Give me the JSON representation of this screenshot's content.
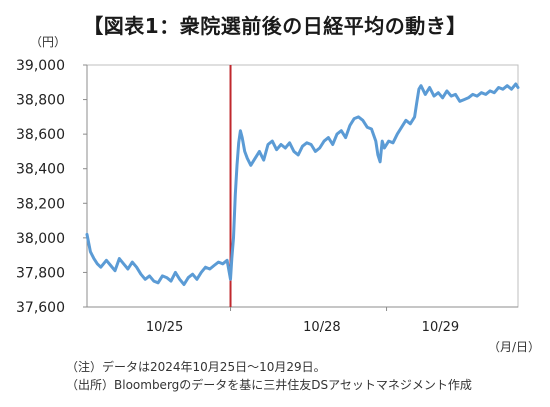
{
  "chart_data": {
    "type": "line",
    "title": "【図表1：衆院選前後の日経平均の動き】",
    "y_unit": "（円）",
    "x_unit": "（月/日）",
    "ylim": [
      37600,
      39000
    ],
    "yticks": [
      39000,
      38800,
      38600,
      38400,
      38200,
      38000,
      37800,
      37600
    ],
    "ytick_labels": [
      "39,000",
      "38,800",
      "38,600",
      "38,400",
      "38,200",
      "38,000",
      "37,800",
      "37,600"
    ],
    "x_tick_labels": [
      {
        "label": "10/25",
        "at": 0.18
      },
      {
        "label": "10/28",
        "at": 0.545
      },
      {
        "label": "10/29",
        "at": 0.82
      }
    ],
    "grid": false,
    "event_line": {
      "at": 0.333,
      "color": "#c0282d"
    },
    "series": [
      {
        "color": "#5b9bd5",
        "points": [
          [
            0.0,
            38020
          ],
          [
            0.008,
            37920
          ],
          [
            0.016,
            37880
          ],
          [
            0.024,
            37850
          ],
          [
            0.032,
            37830
          ],
          [
            0.045,
            37870
          ],
          [
            0.055,
            37840
          ],
          [
            0.065,
            37810
          ],
          [
            0.075,
            37880
          ],
          [
            0.085,
            37850
          ],
          [
            0.095,
            37820
          ],
          [
            0.105,
            37860
          ],
          [
            0.115,
            37830
          ],
          [
            0.125,
            37790
          ],
          [
            0.135,
            37760
          ],
          [
            0.145,
            37780
          ],
          [
            0.155,
            37750
          ],
          [
            0.165,
            37740
          ],
          [
            0.175,
            37780
          ],
          [
            0.185,
            37770
          ],
          [
            0.195,
            37750
          ],
          [
            0.205,
            37800
          ],
          [
            0.215,
            37760
          ],
          [
            0.225,
            37730
          ],
          [
            0.235,
            37770
          ],
          [
            0.245,
            37790
          ],
          [
            0.255,
            37760
          ],
          [
            0.265,
            37800
          ],
          [
            0.275,
            37830
          ],
          [
            0.285,
            37820
          ],
          [
            0.295,
            37840
          ],
          [
            0.305,
            37860
          ],
          [
            0.315,
            37850
          ],
          [
            0.325,
            37870
          ],
          [
            0.333,
            37760
          ],
          [
            0.336,
            37880
          ],
          [
            0.34,
            38000
          ],
          [
            0.344,
            38250
          ],
          [
            0.348,
            38420
          ],
          [
            0.352,
            38550
          ],
          [
            0.356,
            38620
          ],
          [
            0.36,
            38580
          ],
          [
            0.366,
            38500
          ],
          [
            0.372,
            38460
          ],
          [
            0.38,
            38420
          ],
          [
            0.39,
            38460
          ],
          [
            0.4,
            38500
          ],
          [
            0.41,
            38450
          ],
          [
            0.42,
            38540
          ],
          [
            0.43,
            38560
          ],
          [
            0.44,
            38510
          ],
          [
            0.45,
            38540
          ],
          [
            0.46,
            38520
          ],
          [
            0.47,
            38550
          ],
          [
            0.48,
            38500
          ],
          [
            0.49,
            38480
          ],
          [
            0.5,
            38530
          ],
          [
            0.51,
            38550
          ],
          [
            0.52,
            38540
          ],
          [
            0.53,
            38500
          ],
          [
            0.54,
            38520
          ],
          [
            0.55,
            38560
          ],
          [
            0.56,
            38580
          ],
          [
            0.57,
            38540
          ],
          [
            0.58,
            38600
          ],
          [
            0.59,
            38620
          ],
          [
            0.6,
            38580
          ],
          [
            0.61,
            38650
          ],
          [
            0.62,
            38690
          ],
          [
            0.63,
            38700
          ],
          [
            0.64,
            38680
          ],
          [
            0.65,
            38640
          ],
          [
            0.66,
            38630
          ],
          [
            0.67,
            38560
          ],
          [
            0.675,
            38480
          ],
          [
            0.68,
            38440
          ],
          [
            0.685,
            38560
          ],
          [
            0.69,
            38520
          ],
          [
            0.7,
            38560
          ],
          [
            0.71,
            38550
          ],
          [
            0.72,
            38600
          ],
          [
            0.73,
            38640
          ],
          [
            0.74,
            38680
          ],
          [
            0.75,
            38660
          ],
          [
            0.76,
            38700
          ],
          [
            0.765,
            38780
          ],
          [
            0.77,
            38860
          ],
          [
            0.775,
            38880
          ],
          [
            0.785,
            38830
          ],
          [
            0.795,
            38870
          ],
          [
            0.805,
            38820
          ],
          [
            0.815,
            38840
          ],
          [
            0.825,
            38810
          ],
          [
            0.835,
            38850
          ],
          [
            0.845,
            38820
          ],
          [
            0.855,
            38830
          ],
          [
            0.865,
            38790
          ],
          [
            0.875,
            38800
          ],
          [
            0.885,
            38810
          ],
          [
            0.895,
            38830
          ],
          [
            0.905,
            38820
          ],
          [
            0.915,
            38840
          ],
          [
            0.925,
            38830
          ],
          [
            0.935,
            38850
          ],
          [
            0.945,
            38840
          ],
          [
            0.955,
            38870
          ],
          [
            0.965,
            38860
          ],
          [
            0.975,
            38880
          ],
          [
            0.985,
            38860
          ],
          [
            0.995,
            38890
          ],
          [
            1.0,
            38870
          ]
        ]
      }
    ]
  },
  "notes": [
    "（注）データは2024年10月25日～10月29日。",
    "（出所）Bloombergのデータを基に三井住友DSアセットマネジメント作成"
  ]
}
